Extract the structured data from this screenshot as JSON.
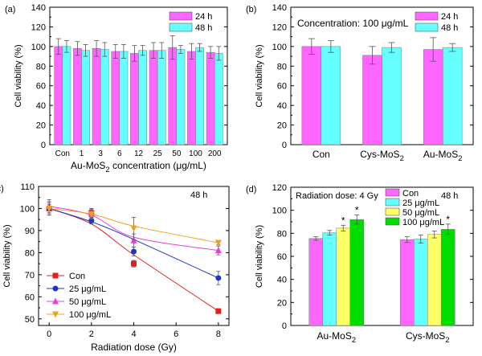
{
  "chart_data": [
    {
      "panel": "(a)",
      "type": "bar",
      "xlabel": "Au-MoS2 concentration (μg/mL)",
      "xlabel_parts": [
        "Au-MoS",
        "2",
        " concentration (",
        "μ",
        "g/mL)"
      ],
      "ylabel": "Cell viability (%)",
      "ylim": [
        0,
        140
      ],
      "yticks": [
        0,
        20,
        40,
        60,
        80,
        100,
        120,
        140
      ],
      "categories": [
        "Con",
        "1",
        "3",
        "6",
        "12",
        "25",
        "50",
        "100",
        "200"
      ],
      "series": [
        {
          "name": "24 h",
          "color": "#ff66ff",
          "values": [
            100,
            98,
            98,
            95,
            93,
            96,
            99,
            95,
            94
          ],
          "errors": [
            8,
            7,
            8,
            7,
            8,
            8,
            12,
            8,
            6
          ]
        },
        {
          "name": "48 h",
          "color": "#66ffff",
          "values": [
            100,
            96,
            97,
            95,
            96,
            96,
            97,
            99,
            93
          ],
          "errors": [
            6,
            6,
            7,
            7,
            5,
            8,
            4,
            4,
            7
          ]
        }
      ],
      "legend_position": "top-right",
      "annotation": ""
    },
    {
      "panel": "(b)",
      "type": "bar",
      "xlabel": "",
      "ylabel": "Cell viability (%)",
      "ylim": [
        0,
        140
      ],
      "yticks": [
        0,
        20,
        40,
        60,
        80,
        100,
        120,
        140
      ],
      "categories": [
        "Con",
        "Cys-MoS2",
        "Au-MoS2"
      ],
      "category_parts": [
        [
          "Con",
          ""
        ],
        [
          "Cys-MoS",
          "2"
        ],
        [
          "Au-MoS",
          "2"
        ]
      ],
      "series": [
        {
          "name": "24 h",
          "color": "#ff66ff",
          "values": [
            100,
            91,
            97
          ],
          "errors": [
            8,
            9,
            12
          ]
        },
        {
          "name": "48 h",
          "color": "#66ffff",
          "values": [
            100,
            99,
            99
          ],
          "errors": [
            6,
            5,
            4
          ]
        }
      ],
      "legend_position": "top-right",
      "annotation": "Concentration: 100 μg/mL"
    },
    {
      "panel": "(c)",
      "type": "scatter",
      "xlabel": "Radiation dose (Gy)",
      "ylabel": "Cell viability (%)",
      "xlim": [
        -0.5,
        8.5
      ],
      "ylim": [
        47,
        110
      ],
      "xticks": [
        0,
        2,
        4,
        6,
        8
      ],
      "yticks": [
        50,
        60,
        70,
        80,
        90,
        100,
        110
      ],
      "x": [
        0,
        2,
        4,
        8
      ],
      "series": [
        {
          "name": "Con",
          "color": "#e02020",
          "marker": "square",
          "values": [
            100,
            98,
            75,
            53.5
          ],
          "errors": [
            3,
            2,
            1.5,
            0.5
          ],
          "fit": [
            100,
            93,
            79,
            53.5
          ]
        },
        {
          "name": "25 μg/mL",
          "color": "#1a35c8",
          "marker": "circle",
          "values": [
            100,
            94.5,
            80.5,
            68.5
          ],
          "errors": [
            2,
            1.5,
            2,
            3
          ],
          "fit": [
            100,
            94,
            86,
            68.5
          ]
        },
        {
          "name": "50 μg/mL",
          "color": "#e040e0",
          "marker": "triangle-up",
          "values": [
            101,
            97.5,
            85.5,
            81
          ],
          "errors": [
            3,
            2,
            3,
            2
          ],
          "fit": [
            101,
            97,
            87,
            81
          ]
        },
        {
          "name": "100 μg/mL",
          "color": "#f0a020",
          "marker": "triangle-down",
          "values": [
            100,
            97.5,
            91,
            84.5
          ],
          "errors": [
            3,
            2.5,
            5,
            1
          ],
          "fit": [
            100,
            97.5,
            92,
            84.5
          ]
        }
      ],
      "legend_position": "bottom-left",
      "annotation": "48 h"
    },
    {
      "panel": "(d)",
      "type": "bar",
      "xlabel": "",
      "ylabel": "Cell viability (%)",
      "ylim": [
        0,
        120
      ],
      "yticks": [
        0,
        20,
        40,
        60,
        80,
        100,
        120
      ],
      "categories": [
        "Au-MoS2",
        "Cys-MoS2"
      ],
      "category_parts": [
        [
          "Au-MoS",
          "2"
        ],
        [
          "Cys-MoS",
          "2"
        ]
      ],
      "series": [
        {
          "name": "Con",
          "color": "#ff66ff",
          "values": [
            75.5,
            74.5
          ],
          "errors": [
            1.5,
            2.5
          ],
          "star": [
            false,
            false
          ]
        },
        {
          "name": "25 μg/mL",
          "color": "#66ffff",
          "values": [
            80.5,
            75
          ],
          "errors": [
            2,
            3.5
          ],
          "star": [
            false,
            false
          ]
        },
        {
          "name": "50 μg/mL",
          "color": "#ffff66",
          "values": [
            84.5,
            79
          ],
          "errors": [
            2.5,
            3
          ],
          "star": [
            true,
            false
          ]
        },
        {
          "name": "100 μg/mL",
          "color": "#00dd00",
          "values": [
            92,
            83.5
          ],
          "errors": [
            4,
            4.5
          ],
          "star": [
            true,
            true
          ]
        }
      ],
      "legend_position": "top-left",
      "annotation": "Radiation dose: 4 Gy",
      "annotation2": "48 h"
    }
  ]
}
